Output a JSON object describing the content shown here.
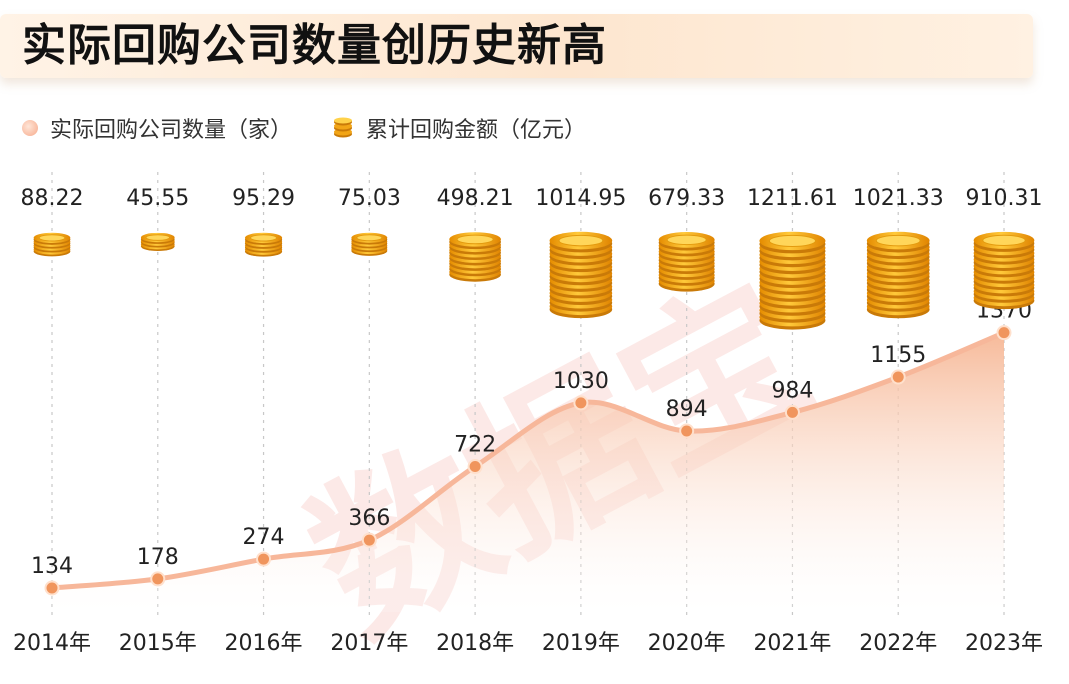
{
  "title": "实际回购公司数量创历史新高",
  "legend": {
    "count_label": "实际回购公司数量（家）",
    "amount_label": "累计回购金额（亿元）"
  },
  "watermark": "数据宝",
  "colors": {
    "line": "#f7b79a",
    "dot": "#f0955d",
    "area_top": "#f6b694",
    "coin": "#f2a516",
    "coin_dark": "#c97a08"
  },
  "chart_data": {
    "type": "line",
    "categories": [
      "2014年",
      "2015年",
      "2016年",
      "2017年",
      "2018年",
      "2019年",
      "2020年",
      "2021年",
      "2022年",
      "2023年"
    ],
    "series": [
      {
        "name": "实际回购公司数量（家）",
        "values": [
          134,
          178,
          274,
          366,
          722,
          1030,
          894,
          984,
          1155,
          1370
        ],
        "labels": [
          "134",
          "178",
          "274",
          "366",
          "722",
          "1030",
          "894",
          "984",
          "1155",
          "1370"
        ]
      },
      {
        "name": "累计回购金额（亿元）",
        "values": [
          88.22,
          45.55,
          95.29,
          75.03,
          498.21,
          1014.95,
          679.33,
          1211.61,
          1021.33,
          910.31
        ],
        "labels": [
          "88.22",
          "45.55",
          "95.29",
          "75.03",
          "498.21",
          "1014.95",
          "679.33",
          "1211.61",
          "1021.33",
          "910.31"
        ]
      }
    ]
  }
}
